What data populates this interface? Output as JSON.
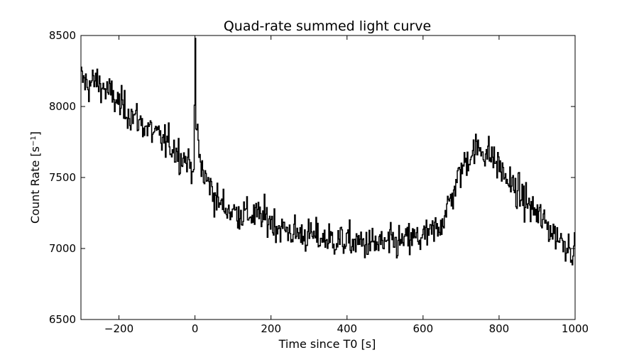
{
  "chart_data": {
    "type": "line",
    "title": "Quad-rate summed light curve",
    "xlabel": "Time since T0 [s]",
    "ylabel": "Count Rate [s",
    "ylabel_sup": "−1",
    "ylabel_tail": "]",
    "xlim": [
      -300,
      1000
    ],
    "ylim": [
      6500,
      8500
    ],
    "xticks": [
      -200,
      0,
      200,
      400,
      600,
      800,
      1000
    ],
    "xtick_labels": [
      "−200",
      "0",
      "200",
      "400",
      "600",
      "800",
      "1000"
    ],
    "yticks": [
      6500,
      7000,
      7500,
      8000,
      8500
    ],
    "ytick_labels": [
      "6500",
      "7000",
      "7500",
      "8000",
      "8500"
    ],
    "grid": false,
    "line_color": "#000000",
    "series": [
      {
        "step_seconds": 2,
        "x": [
          -300,
          -280,
          -260,
          -240,
          -220,
          -200,
          -180,
          -160,
          -140,
          -120,
          -100,
          -80,
          -60,
          -40,
          -20,
          -10,
          -5,
          -2,
          0,
          2,
          4,
          6,
          8,
          10,
          15,
          20,
          25,
          30,
          40,
          50,
          60,
          80,
          100,
          120,
          140,
          160,
          180,
          200,
          220,
          240,
          260,
          280,
          300,
          320,
          340,
          360,
          380,
          400,
          420,
          440,
          460,
          480,
          500,
          520,
          540,
          560,
          580,
          600,
          620,
          640,
          660,
          680,
          700,
          720,
          740,
          750,
          760,
          780,
          800,
          820,
          840,
          860,
          880,
          900,
          920,
          940,
          960,
          980,
          1000
        ],
        "values": [
          8200,
          8150,
          8180,
          8130,
          8080,
          8020,
          7970,
          7930,
          7880,
          7840,
          7790,
          7750,
          7720,
          7660,
          7620,
          7580,
          7600,
          7650,
          8200,
          8000,
          7800,
          7850,
          7780,
          7650,
          7600,
          7550,
          7500,
          7480,
          7450,
          7380,
          7330,
          7290,
          7260,
          7250,
          7240,
          7230,
          7220,
          7200,
          7150,
          7130,
          7110,
          7100,
          7090,
          7080,
          7070,
          7060,
          7060,
          7050,
          7040,
          7040,
          7030,
          7030,
          7030,
          7040,
          7040,
          7060,
          7070,
          7080,
          7100,
          7150,
          7250,
          7400,
          7550,
          7650,
          7700,
          7700,
          7690,
          7650,
          7580,
          7490,
          7420,
          7360,
          7300,
          7240,
          7180,
          7120,
          7070,
          7030,
          6980
        ]
      }
    ]
  }
}
